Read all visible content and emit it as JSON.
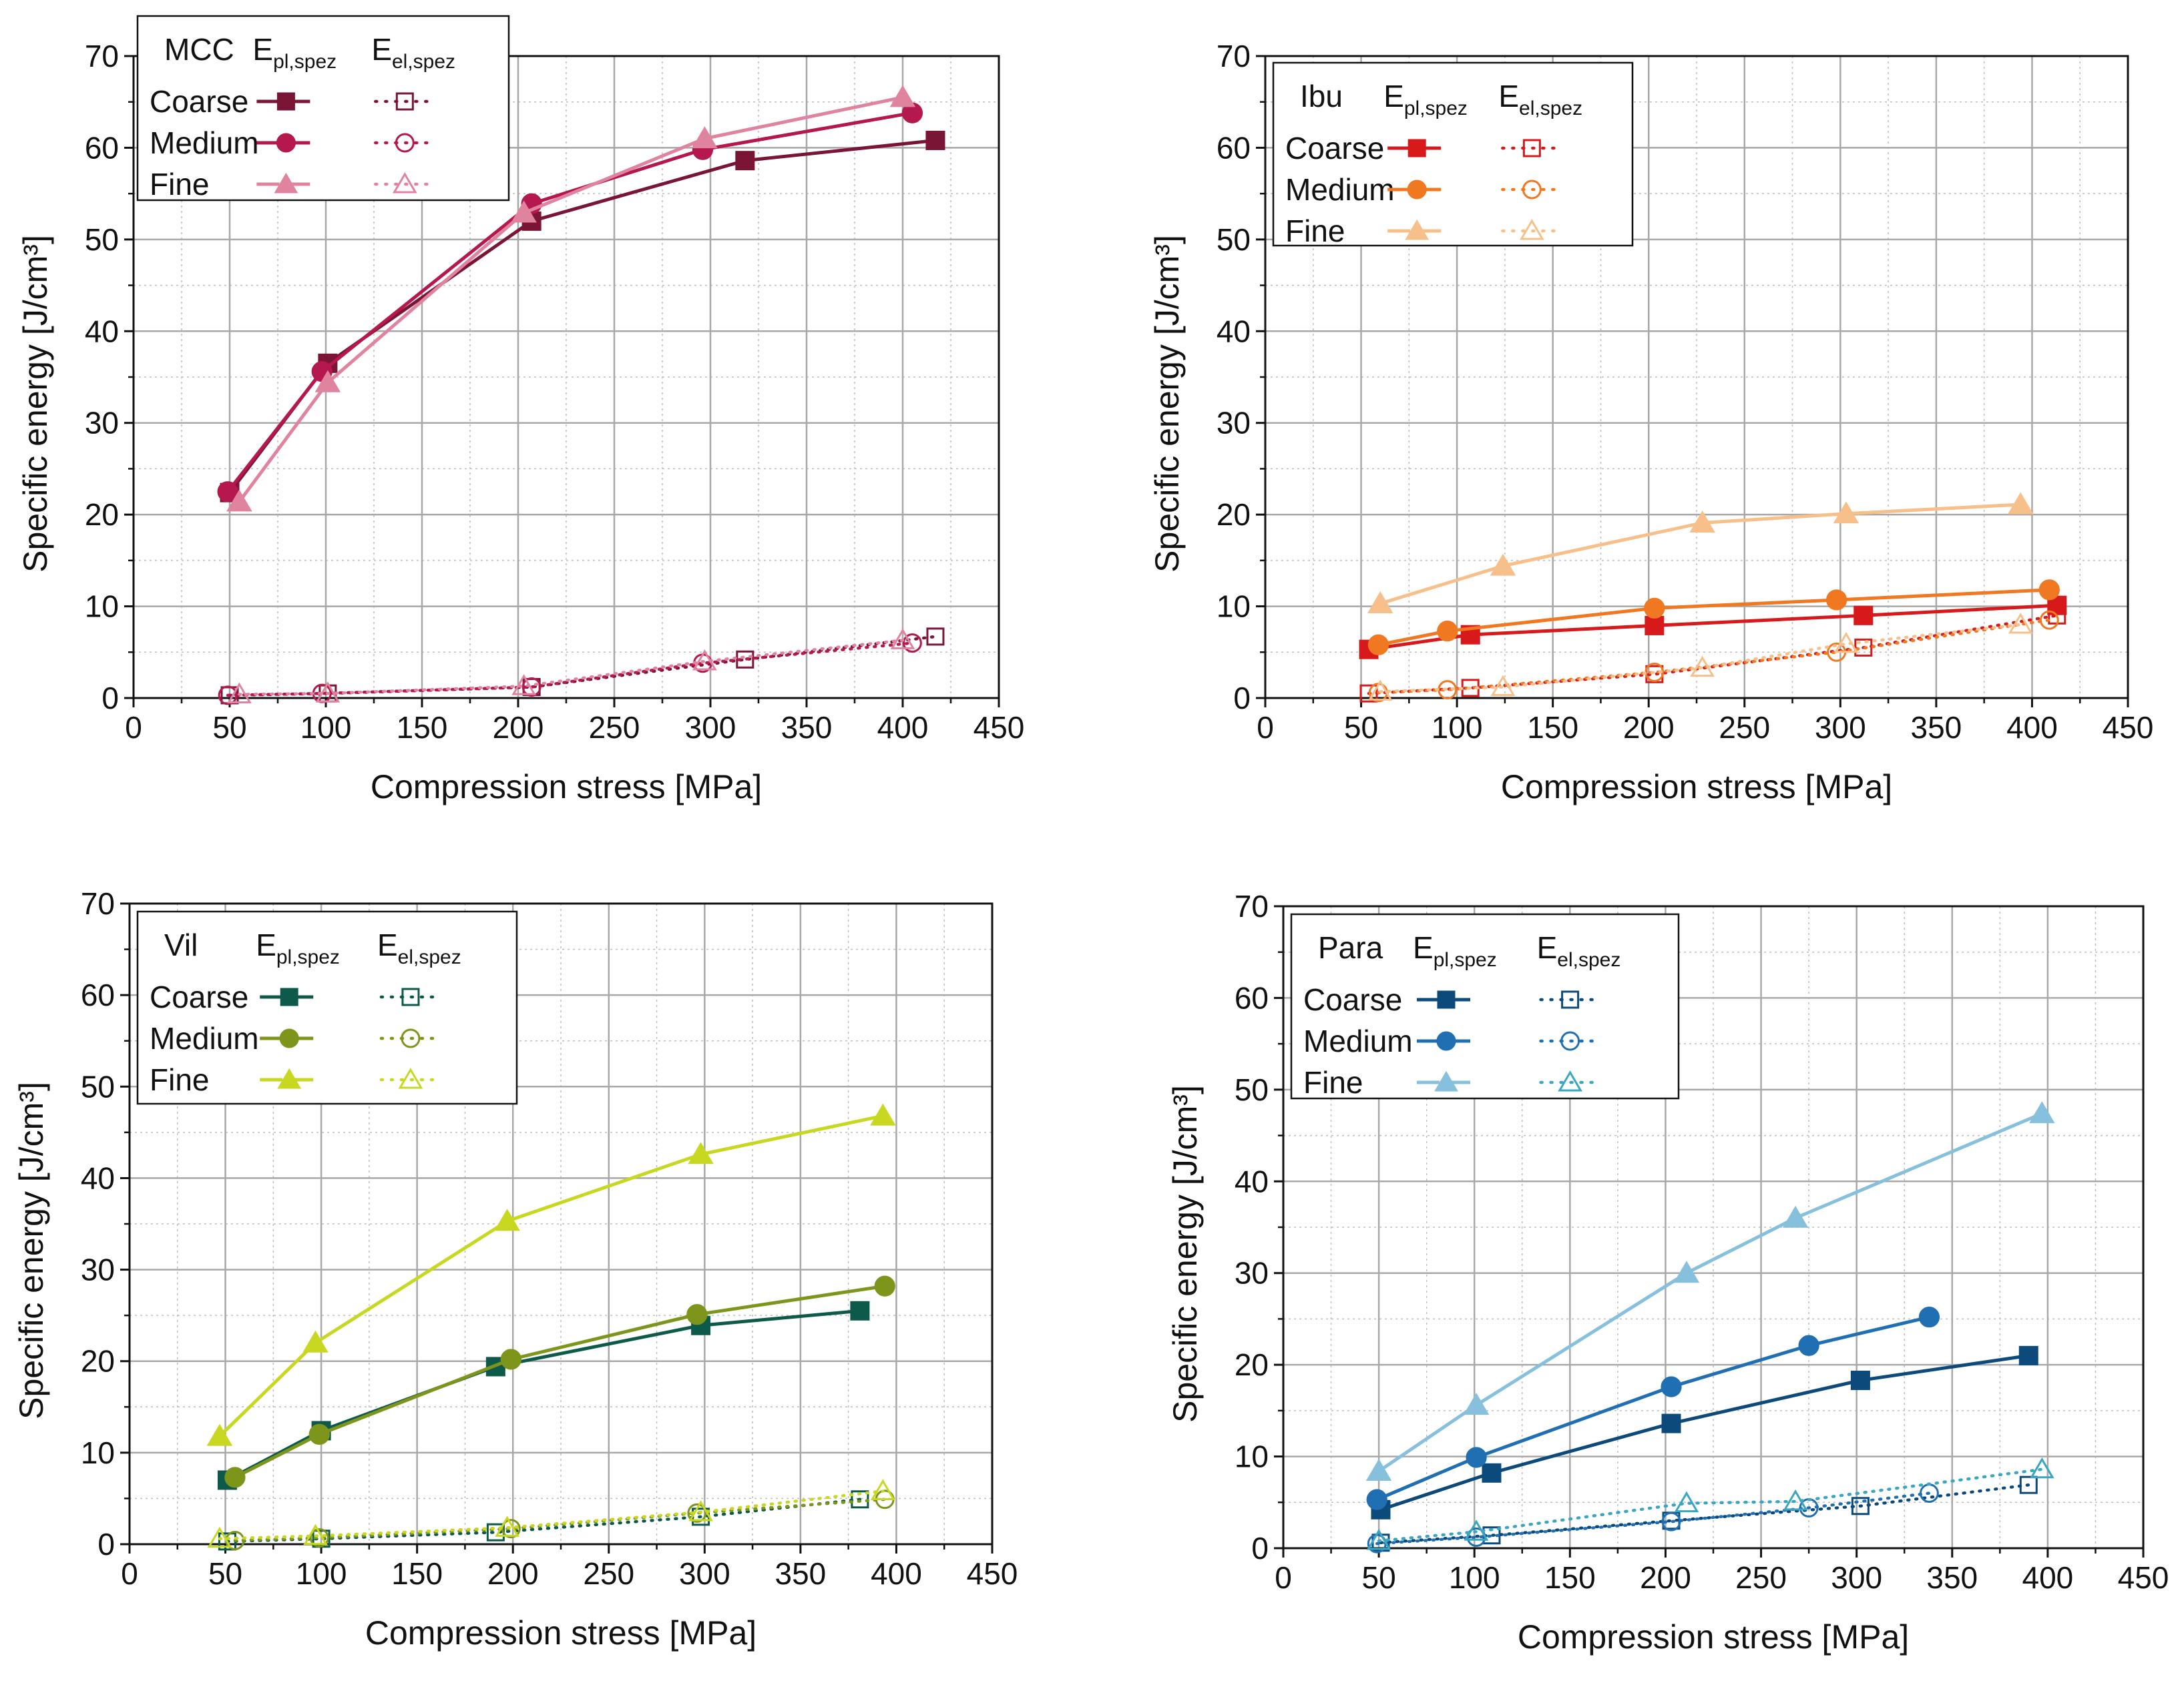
{
  "figure": {
    "xlabel": "Compression stress [MPa]",
    "ylabel": "Specific energy [J/cm³]",
    "xlim": [
      0,
      450
    ],
    "ylim": [
      0,
      70
    ],
    "xticks": [
      0,
      50,
      100,
      150,
      200,
      250,
      300,
      350,
      400,
      450
    ],
    "yticks": [
      0,
      10,
      20,
      30,
      40,
      50,
      60,
      70
    ],
    "legend_header_pl": "pl,spez",
    "legend_header_el": "el,spez",
    "legend_header_prefix": "E"
  },
  "chart_data": [
    {
      "type": "line",
      "panel": "top-left",
      "material": "MCC",
      "legend_placement": "top-left",
      "xlabel": "Compression stress [MPa]",
      "ylabel": "Specific energy [J/cm³]",
      "xlim": [
        0,
        450
      ],
      "ylim": [
        0,
        70
      ],
      "grid": true,
      "series": [
        {
          "name": "Coarse",
          "kind": "pl",
          "marker": "square",
          "color": "#7b1535",
          "x": [
            50,
            101,
            207,
            318,
            417
          ],
          "y": [
            22.4,
            36.5,
            52.0,
            58.6,
            60.8
          ]
        },
        {
          "name": "Medium",
          "kind": "pl",
          "marker": "circle",
          "color": "#b5174f",
          "x": [
            49,
            98,
            207,
            296,
            405
          ],
          "y": [
            22.5,
            35.6,
            53.9,
            59.8,
            63.8
          ]
        },
        {
          "name": "Fine",
          "kind": "pl",
          "marker": "triangle",
          "color": "#e0839e",
          "x": [
            55,
            101,
            203,
            297,
            400
          ],
          "y": [
            21.4,
            34.4,
            52.9,
            61.0,
            65.5
          ]
        },
        {
          "name": "Coarse",
          "kind": "el",
          "marker": "square",
          "color": "#7b1535",
          "x": [
            50,
            101,
            207,
            318,
            417
          ],
          "y": [
            0.3,
            0.5,
            1.2,
            4.2,
            6.7
          ]
        },
        {
          "name": "Medium",
          "kind": "el",
          "marker": "circle",
          "color": "#b5174f",
          "x": [
            49,
            98,
            207,
            296,
            405
          ],
          "y": [
            0.3,
            0.5,
            1.2,
            3.8,
            6.0
          ]
        },
        {
          "name": "Fine",
          "kind": "el",
          "marker": "triangle",
          "color": "#e0839e",
          "x": [
            55,
            101,
            203,
            297,
            400
          ],
          "y": [
            0.4,
            0.5,
            1.3,
            4.0,
            6.3
          ]
        }
      ]
    },
    {
      "type": "line",
      "panel": "top-right",
      "material": "Ibu",
      "legend_placement": "top-left",
      "xlabel": "Compression stress [MPa]",
      "ylabel": "Specific energy [J/cm³]",
      "xlim": [
        0,
        450
      ],
      "ylim": [
        0,
        70
      ],
      "grid": true,
      "series": [
        {
          "name": "Coarse",
          "kind": "pl",
          "marker": "square",
          "color": "#d7191c",
          "x": [
            54,
            107,
            203,
            312,
            413
          ],
          "y": [
            5.3,
            6.9,
            7.9,
            9.0,
            10.1
          ]
        },
        {
          "name": "Medium",
          "kind": "pl",
          "marker": "circle",
          "color": "#f07820",
          "x": [
            59,
            95,
            203,
            298,
            409
          ],
          "y": [
            5.8,
            7.3,
            9.8,
            10.7,
            11.8
          ]
        },
        {
          "name": "Fine",
          "kind": "pl",
          "marker": "triangle",
          "color": "#f7c08a",
          "x": [
            60,
            124,
            228,
            303,
            394
          ],
          "y": [
            10.3,
            14.4,
            19.1,
            20.1,
            21.1
          ]
        },
        {
          "name": "Coarse",
          "kind": "el",
          "marker": "square",
          "color": "#d7191c",
          "x": [
            54,
            107,
            203,
            312,
            413
          ],
          "y": [
            0.5,
            1.1,
            2.6,
            5.5,
            9.0
          ]
        },
        {
          "name": "Medium",
          "kind": "el",
          "marker": "circle",
          "color": "#f07820",
          "x": [
            59,
            95,
            203,
            298,
            409
          ],
          "y": [
            0.6,
            0.9,
            2.8,
            5.0,
            8.5
          ]
        },
        {
          "name": "Fine",
          "kind": "el",
          "marker": "triangle",
          "color": "#f7c08a",
          "x": [
            60,
            124,
            228,
            303,
            394
          ],
          "y": [
            0.7,
            1.2,
            3.3,
            5.9,
            8.0
          ]
        }
      ]
    },
    {
      "type": "line",
      "panel": "bottom-left",
      "material": "Vil",
      "legend_placement": "top-left",
      "xlabel": "Compression stress [MPa]",
      "ylabel": "Specific energy [J/cm³]",
      "xlim": [
        0,
        450
      ],
      "ylim": [
        0,
        70
      ],
      "grid": true,
      "series": [
        {
          "name": "Coarse",
          "kind": "pl",
          "marker": "square",
          "color": "#0e5a4a",
          "x": [
            51,
            100,
            191,
            298,
            381
          ],
          "y": [
            7.0,
            12.4,
            19.4,
            23.9,
            25.5
          ]
        },
        {
          "name": "Medium",
          "kind": "pl",
          "marker": "circle",
          "color": "#7d951a",
          "x": [
            55,
            99,
            199,
            296,
            394
          ],
          "y": [
            7.3,
            12.0,
            20.2,
            25.1,
            28.2
          ]
        },
        {
          "name": "Fine",
          "kind": "pl",
          "marker": "triangle",
          "color": "#c8d820",
          "x": [
            47,
            97,
            197,
            298,
            393
          ],
          "y": [
            11.8,
            22.0,
            35.3,
            42.6,
            46.8
          ]
        },
        {
          "name": "Coarse",
          "kind": "el",
          "marker": "square",
          "color": "#0e5a4a",
          "x": [
            51,
            100,
            191,
            298,
            381
          ],
          "y": [
            0.3,
            0.6,
            1.3,
            3.0,
            4.9
          ]
        },
        {
          "name": "Medium",
          "kind": "el",
          "marker": "circle",
          "color": "#7d951a",
          "x": [
            55,
            99,
            199,
            296,
            394
          ],
          "y": [
            0.4,
            0.7,
            1.7,
            3.4,
            4.9
          ]
        },
        {
          "name": "Fine",
          "kind": "el",
          "marker": "triangle",
          "color": "#c8d820",
          "x": [
            47,
            97,
            197,
            298,
            393
          ],
          "y": [
            0.6,
            0.9,
            1.8,
            3.5,
            5.8
          ]
        }
      ]
    },
    {
      "type": "line",
      "panel": "bottom-right",
      "material": "Para",
      "legend_placement": "top-left",
      "xlabel": "Compression stress [MPa]",
      "ylabel": "Specific energy [J/cm³]",
      "xlim": [
        0,
        450
      ],
      "ylim": [
        0,
        70
      ],
      "grid": true,
      "series": [
        {
          "name": "Coarse",
          "kind": "pl",
          "marker": "square",
          "color": "#0d4a7c",
          "x": [
            51,
            109,
            203,
            302,
            390
          ],
          "y": [
            4.2,
            8.2,
            13.6,
            18.3,
            21.0
          ]
        },
        {
          "name": "Medium",
          "kind": "pl",
          "marker": "circle",
          "color": "#1f6fb2",
          "x": [
            49,
            101,
            203,
            275,
            338
          ],
          "y": [
            5.3,
            9.9,
            17.6,
            22.1,
            25.2
          ]
        },
        {
          "name": "Fine",
          "kind": "pl",
          "marker": "triangle",
          "color": "#86c0dc",
          "x": [
            50,
            101,
            211,
            268,
            397
          ],
          "y": [
            8.4,
            15.6,
            30.0,
            36.0,
            47.4
          ]
        },
        {
          "name": "Coarse",
          "kind": "el",
          "marker": "square",
          "color": "#0d4a7c",
          "x": [
            51,
            109,
            203,
            302,
            390
          ],
          "y": [
            0.6,
            1.4,
            3.0,
            4.6,
            6.9
          ]
        },
        {
          "name": "Medium",
          "kind": "el",
          "marker": "circle",
          "color": "#1f6fb2",
          "x": [
            49,
            101,
            203,
            275,
            338
          ],
          "y": [
            0.5,
            1.2,
            2.9,
            4.4,
            6.0
          ]
        },
        {
          "name": "Fine",
          "kind": "el",
          "marker": "triangle",
          "color": "#3aa6bf",
          "x": [
            50,
            101,
            211,
            268,
            397
          ],
          "y": [
            0.8,
            1.8,
            4.9,
            5.1,
            8.6
          ]
        }
      ]
    }
  ]
}
